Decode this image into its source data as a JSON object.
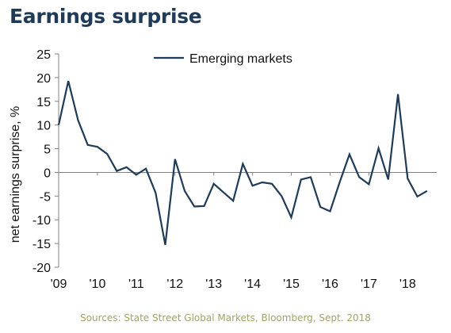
{
  "header": {
    "title": "Earnings surprise"
  },
  "footer": {
    "source": "Sources: State Street Global Markets, Bloomberg, Sept. 2018"
  },
  "colors": {
    "line": "#1f3b57",
    "axis": "#808080"
  },
  "chart_data": {
    "type": "line",
    "title": "Earnings surprise",
    "xlabel": "",
    "ylabel": "net earnings surprise, %",
    "ylim": [
      -20,
      25
    ],
    "yticks": [
      25,
      20,
      15,
      10,
      5,
      0,
      -5,
      -10,
      -15,
      -20
    ],
    "ytick_labels": [
      "25",
      "20",
      "15",
      "10",
      "5",
      "0",
      "-5",
      "-10",
      "-15",
      "-20"
    ],
    "xlim": [
      2009.0,
      2018.75
    ],
    "xticks": [
      2009,
      2010,
      2011,
      2012,
      2013,
      2014,
      2015,
      2016,
      2017,
      2018
    ],
    "xtick_labels": [
      "'09",
      "'10",
      "'11",
      "'12",
      "'13",
      "'14",
      "'15",
      "'16",
      "'17",
      "'18"
    ],
    "legend": {
      "position": "top-center"
    },
    "grid": false,
    "series": [
      {
        "name": "Emerging markets",
        "x": [
          2009.0,
          2009.25,
          2009.5,
          2009.75,
          2010.0,
          2010.25,
          2010.5,
          2010.75,
          2011.0,
          2011.25,
          2011.5,
          2011.75,
          2012.0,
          2012.25,
          2012.5,
          2012.75,
          2013.0,
          2013.25,
          2013.5,
          2013.75,
          2014.0,
          2014.25,
          2014.5,
          2014.75,
          2015.0,
          2015.25,
          2015.5,
          2015.75,
          2016.0,
          2016.25,
          2016.5,
          2016.75,
          2017.0,
          2017.25,
          2017.5,
          2017.75,
          2018.0,
          2018.25,
          2018.5
        ],
        "values": [
          10.0,
          19.3,
          11.0,
          5.8,
          5.4,
          3.9,
          0.3,
          1.1,
          -0.5,
          0.8,
          -4.3,
          -15.3,
          2.8,
          -3.9,
          -7.2,
          -7.1,
          -2.4,
          -4.2,
          -6.0,
          1.8,
          -2.8,
          -2.1,
          -2.4,
          -5.0,
          -9.5,
          -1.5,
          -1.0,
          -7.3,
          -8.2,
          -2.0,
          3.8,
          -1.0,
          -2.5,
          5.1,
          -1.5,
          16.5,
          -1.3,
          -5.1,
          -3.9
        ]
      }
    ]
  }
}
